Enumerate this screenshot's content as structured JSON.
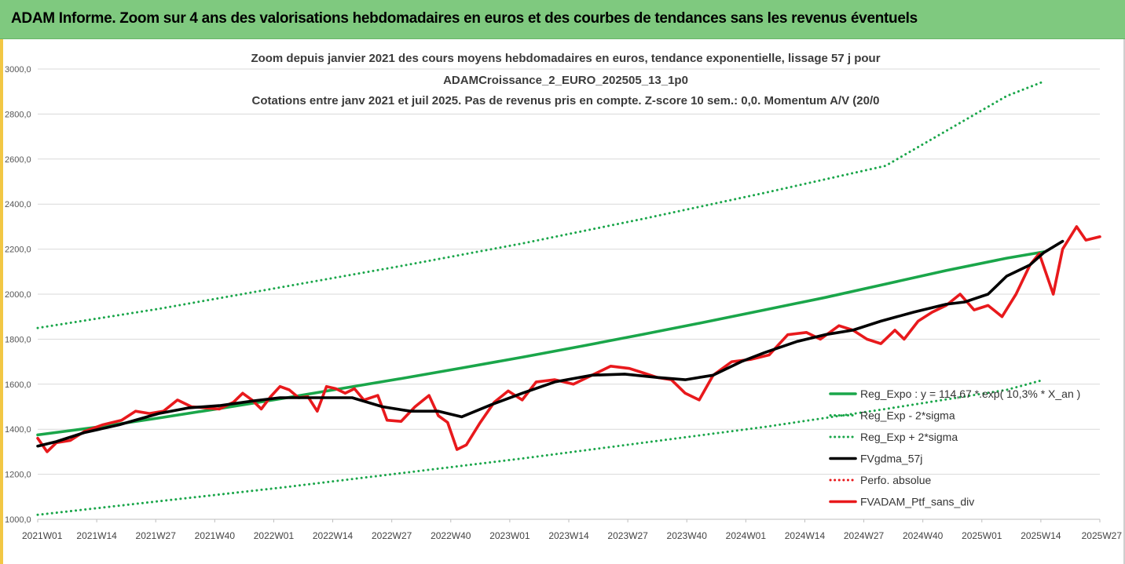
{
  "banner": {
    "title": "ADAM Informe. Zoom sur 4 ans des valorisations hebdomadaires en euros et des courbes de tendances sans les revenus éventuels"
  },
  "colors": {
    "banner_bg": "#7fc97f",
    "regression": "#1aa64a",
    "smoothing": "#000000",
    "portfolio": "#e8191c",
    "absolute_perf": "#e8191c"
  },
  "chart_data": {
    "type": "line",
    "title_lines": [
      "Zoom depuis janvier 2021 des cours moyens hebdomadaires  en euros, tendance exponentielle, lissage 57 j pour",
      "ADAMCroissance_2_EURO_202505_13_1p0",
      "Cotations entre janv 2021 et juil 2025. Pas de revenus pris en compte. Z-score 10 sem.: 0,0. Momentum A/V (20/0"
    ],
    "ylim": [
      1000,
      3000
    ],
    "y_ticks": [
      "1000,0",
      "1200,0",
      "1400,0",
      "1600,0",
      "1800,0",
      "2000,0",
      "2200,0",
      "2400,0",
      "2600,0",
      "2800,0",
      "3000,0"
    ],
    "x_ticks": [
      "2021W01",
      "2021W14",
      "2021W27",
      "2021W40",
      "2022W01",
      "2022W14",
      "2022W27",
      "2022W40",
      "2023W01",
      "2023W14",
      "2023W27",
      "2023W40",
      "2024W01",
      "2024W14",
      "2024W27",
      "2024W40",
      "2025W01",
      "2025W14",
      "2025W27"
    ],
    "grid": "horizontal",
    "legend_position": "bottom-right",
    "series": [
      {
        "name": "Reg_Expo : y = 114,67 *.exp( 10,3% * X_an )",
        "style": "solid-thick",
        "color": "#1aa64a",
        "points": [
          [
            0,
            1375
          ],
          [
            26,
            1410
          ],
          [
            52,
            1450
          ],
          [
            78,
            1492
          ],
          [
            104,
            1535
          ],
          [
            130,
            1580
          ],
          [
            156,
            1625
          ],
          [
            182,
            1672
          ],
          [
            208,
            1720
          ],
          [
            234,
            1770
          ],
          [
            260,
            1822
          ],
          [
            286,
            1875
          ],
          [
            312,
            1930
          ],
          [
            338,
            1985
          ],
          [
            364,
            2045
          ],
          [
            390,
            2105
          ],
          [
            416,
            2160
          ],
          [
            432,
            2188
          ]
        ]
      },
      {
        "name": "Reg_Exp - 2*sigma",
        "style": "dotted",
        "color": "#1aa64a",
        "points": [
          [
            0,
            1020
          ],
          [
            52,
            1080
          ],
          [
            104,
            1140
          ],
          [
            156,
            1205
          ],
          [
            208,
            1270
          ],
          [
            260,
            1340
          ],
          [
            312,
            1410
          ],
          [
            364,
            1490
          ],
          [
            416,
            1575
          ],
          [
            432,
            1620
          ]
        ]
      },
      {
        "name": "Reg_Exp + 2*sigma",
        "style": "dotted",
        "color": "#1aa64a",
        "points": [
          [
            0,
            1850
          ],
          [
            52,
            1935
          ],
          [
            104,
            2030
          ],
          [
            156,
            2125
          ],
          [
            208,
            2225
          ],
          [
            260,
            2335
          ],
          [
            312,
            2450
          ],
          [
            364,
            2570
          ],
          [
            416,
            2880
          ],
          [
            432,
            2945
          ]
        ]
      },
      {
        "name": "FVgdma_57j",
        "style": "solid-thick",
        "color": "#000000",
        "points": [
          [
            0,
            1325
          ],
          [
            8,
            1345
          ],
          [
            20,
            1385
          ],
          [
            35,
            1420
          ],
          [
            52,
            1470
          ],
          [
            65,
            1495
          ],
          [
            78,
            1505
          ],
          [
            92,
            1525
          ],
          [
            104,
            1540
          ],
          [
            117,
            1540
          ],
          [
            135,
            1540
          ],
          [
            148,
            1500
          ],
          [
            160,
            1480
          ],
          [
            172,
            1480
          ],
          [
            182,
            1455
          ],
          [
            195,
            1510
          ],
          [
            208,
            1560
          ],
          [
            222,
            1610
          ],
          [
            238,
            1640
          ],
          [
            252,
            1645
          ],
          [
            266,
            1630
          ],
          [
            278,
            1620
          ],
          [
            290,
            1640
          ],
          [
            302,
            1700
          ],
          [
            312,
            1740
          ],
          [
            326,
            1790
          ],
          [
            338,
            1820
          ],
          [
            350,
            1840
          ],
          [
            362,
            1880
          ],
          [
            376,
            1920
          ],
          [
            390,
            1955
          ],
          [
            398,
            1965
          ],
          [
            408,
            2000
          ],
          [
            416,
            2080
          ],
          [
            426,
            2130
          ],
          [
            432,
            2185
          ],
          [
            440,
            2235
          ]
        ]
      },
      {
        "name": "Perfo. absolue",
        "style": "dotted",
        "color": "#e8191c",
        "points": []
      },
      {
        "name": "FVADAM_Ptf_sans_div",
        "style": "solid-thick",
        "color": "#e8191c",
        "points": [
          [
            0,
            1360
          ],
          [
            4,
            1300
          ],
          [
            8,
            1340
          ],
          [
            14,
            1350
          ],
          [
            20,
            1390
          ],
          [
            28,
            1420
          ],
          [
            36,
            1440
          ],
          [
            42,
            1480
          ],
          [
            48,
            1470
          ],
          [
            54,
            1480
          ],
          [
            60,
            1530
          ],
          [
            66,
            1500
          ],
          [
            72,
            1495
          ],
          [
            78,
            1490
          ],
          [
            84,
            1520
          ],
          [
            88,
            1560
          ],
          [
            92,
            1530
          ],
          [
            96,
            1490
          ],
          [
            100,
            1545
          ],
          [
            104,
            1590
          ],
          [
            108,
            1575
          ],
          [
            112,
            1540
          ],
          [
            116,
            1545
          ],
          [
            120,
            1480
          ],
          [
            124,
            1590
          ],
          [
            128,
            1580
          ],
          [
            132,
            1560
          ],
          [
            136,
            1580
          ],
          [
            140,
            1530
          ],
          [
            146,
            1550
          ],
          [
            150,
            1440
          ],
          [
            156,
            1435
          ],
          [
            162,
            1500
          ],
          [
            168,
            1550
          ],
          [
            172,
            1460
          ],
          [
            176,
            1430
          ],
          [
            180,
            1310
          ],
          [
            184,
            1330
          ],
          [
            190,
            1430
          ],
          [
            196,
            1520
          ],
          [
            202,
            1570
          ],
          [
            208,
            1530
          ],
          [
            214,
            1610
          ],
          [
            222,
            1620
          ],
          [
            230,
            1600
          ],
          [
            238,
            1640
          ],
          [
            246,
            1680
          ],
          [
            254,
            1670
          ],
          [
            260,
            1650
          ],
          [
            266,
            1630
          ],
          [
            272,
            1620
          ],
          [
            278,
            1560
          ],
          [
            284,
            1530
          ],
          [
            290,
            1640
          ],
          [
            298,
            1700
          ],
          [
            306,
            1710
          ],
          [
            314,
            1730
          ],
          [
            322,
            1820
          ],
          [
            330,
            1830
          ],
          [
            336,
            1800
          ],
          [
            344,
            1860
          ],
          [
            350,
            1840
          ],
          [
            356,
            1800
          ],
          [
            362,
            1780
          ],
          [
            368,
            1840
          ],
          [
            372,
            1800
          ],
          [
            378,
            1880
          ],
          [
            384,
            1920
          ],
          [
            390,
            1950
          ],
          [
            396,
            2000
          ],
          [
            402,
            1930
          ],
          [
            408,
            1950
          ],
          [
            414,
            1900
          ],
          [
            420,
            2000
          ],
          [
            426,
            2130
          ],
          [
            430,
            2180
          ],
          [
            436,
            2000
          ],
          [
            440,
            2200
          ],
          [
            446,
            2300
          ],
          [
            450,
            2240
          ],
          [
            456,
            2255
          ]
        ]
      }
    ]
  }
}
